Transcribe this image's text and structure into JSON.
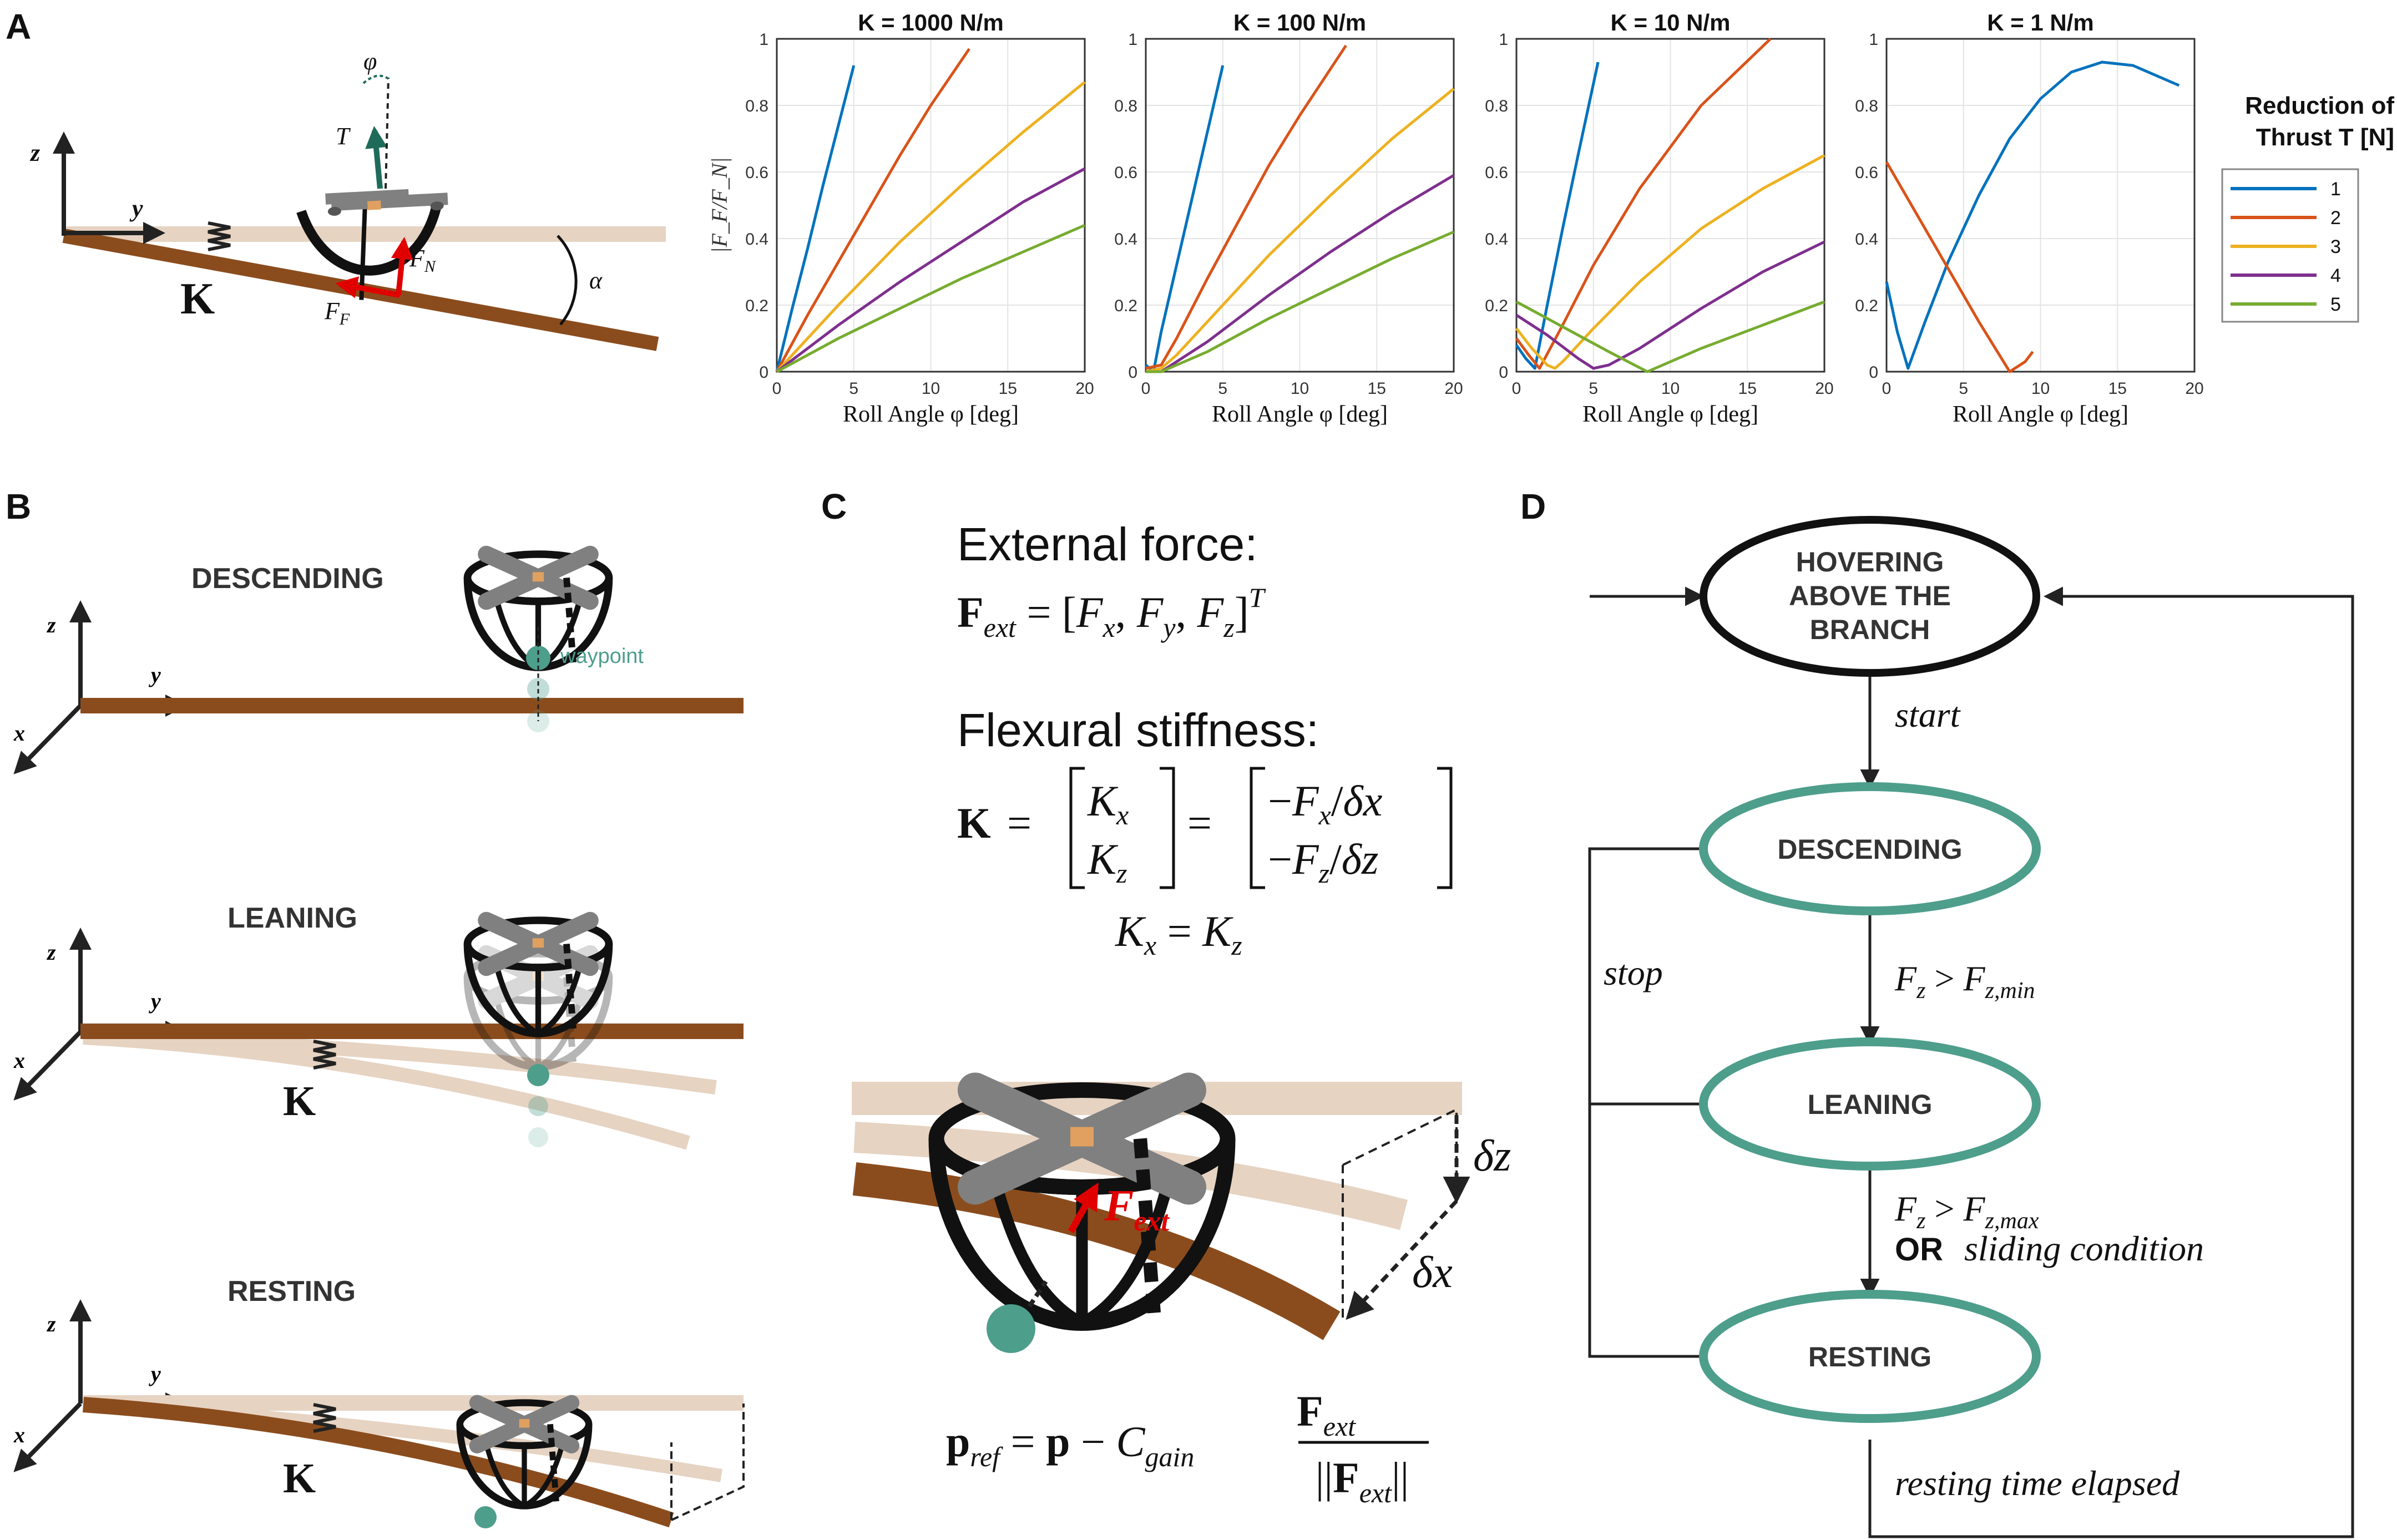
{
  "panels": {
    "a": {
      "letter": "A",
      "labels": {
        "z": "z",
        "y": "y",
        "K": "K",
        "T": "T",
        "phi": "φ",
        "FN": "F",
        "FN_sub": "N",
        "FF": "F",
        "FF_sub": "F",
        "alpha": "α"
      }
    },
    "b": {
      "letter": "B",
      "states": [
        "DESCENDING",
        "LEANING",
        "RESTING"
      ],
      "waypoint": "waypoint",
      "axes": {
        "z": "z",
        "y": "y",
        "x": "x"
      },
      "K": "K"
    },
    "c": {
      "letter": "C",
      "external_force_title": "External force:",
      "external_force_eq": "F_ext = [F_x, F_y, F_z]^T",
      "stiffness_title": "Flexural stiffness:",
      "stiffness_eq": "K = [K_x ; K_z] = [−F_x/δx ; −F_z/δz]",
      "kxkz": "K_x = K_z",
      "fext_label": "F_ext",
      "dz": "δz",
      "dx": "δx",
      "pref_eq": "p_ref = p − C_gain F_ext / ||F_ext||"
    },
    "d": {
      "letter": "D",
      "states": {
        "hover": [
          "HOVERING",
          "ABOVE THE",
          "BRANCH"
        ],
        "descending": "DESCENDING",
        "leaning": "LEANING",
        "resting": "RESTING"
      },
      "transitions": {
        "start": "start",
        "stop": "stop",
        "fz_min": "F_z > F_z,min",
        "fz_max": "F_z > F_z,max",
        "or": "OR",
        "sliding": "sliding condition",
        "resting_elapsed": "resting time elapsed"
      }
    }
  },
  "legend": {
    "title_line1": "Reduction of",
    "title_line2": "Thrust T [N]",
    "entries": [
      "1",
      "2",
      "3",
      "4",
      "5"
    ]
  },
  "colors": {
    "series": [
      "#0072BD",
      "#D95319",
      "#EDB120",
      "#7E2F8E",
      "#77AC30"
    ],
    "branch": "#8B4C1D",
    "branch_ghost": "#E6D3C2",
    "teal": "#4E9E8C",
    "drone_grey": "#808080"
  },
  "chart_data": [
    {
      "type": "line",
      "title": "K = 1000 N/m",
      "xlabel": "Roll Angle φ [deg]",
      "ylabel": "|F_F/F_N|",
      "xlim": [
        0,
        20
      ],
      "ylim": [
        0,
        1
      ],
      "xticks": [
        "0",
        "5",
        "10",
        "15",
        "20"
      ],
      "yticks": [
        "0",
        "0.2",
        "0.4",
        "0.6",
        "0.8",
        "1"
      ],
      "grid": true,
      "series": [
        {
          "name": "1",
          "x": [
            0,
            1,
            2,
            3,
            4,
            5
          ],
          "y": [
            0,
            0.19,
            0.37,
            0.56,
            0.74,
            0.92
          ]
        },
        {
          "name": "2",
          "x": [
            0,
            2,
            4,
            6,
            8,
            10,
            12.5
          ],
          "y": [
            0,
            0.17,
            0.33,
            0.49,
            0.65,
            0.8,
            0.97
          ]
        },
        {
          "name": "3",
          "x": [
            0,
            4,
            8,
            12,
            16,
            20
          ],
          "y": [
            0,
            0.2,
            0.39,
            0.56,
            0.72,
            0.87
          ]
        },
        {
          "name": "4",
          "x": [
            0,
            4,
            8,
            12,
            16,
            20
          ],
          "y": [
            0,
            0.14,
            0.27,
            0.39,
            0.51,
            0.61
          ]
        },
        {
          "name": "5",
          "x": [
            0,
            4,
            8,
            12,
            16,
            20
          ],
          "y": [
            0,
            0.1,
            0.19,
            0.28,
            0.36,
            0.44
          ]
        }
      ]
    },
    {
      "type": "line",
      "title": "K = 100 N/m",
      "xlabel": "Roll Angle φ [deg]",
      "ylabel": "",
      "xlim": [
        0,
        20
      ],
      "ylim": [
        0,
        1
      ],
      "xticks": [
        "0",
        "5",
        "10",
        "15",
        "20"
      ],
      "yticks": [
        "0",
        "0.2",
        "0.4",
        "0.6",
        "0.8",
        "1"
      ],
      "grid": true,
      "series": [
        {
          "name": "1",
          "x": [
            0,
            0.5,
            1,
            2,
            3,
            4,
            5
          ],
          "y": [
            0.02,
            0,
            0.12,
            0.32,
            0.52,
            0.72,
            0.92
          ]
        },
        {
          "name": "2",
          "x": [
            0,
            1,
            2,
            4,
            6,
            8,
            10,
            13
          ],
          "y": [
            0.01,
            0.02,
            0.1,
            0.28,
            0.45,
            0.62,
            0.77,
            0.98
          ]
        },
        {
          "name": "3",
          "x": [
            0,
            1,
            2,
            4,
            8,
            12,
            16,
            20
          ],
          "y": [
            0,
            0.01,
            0.05,
            0.15,
            0.35,
            0.53,
            0.7,
            0.85
          ]
        },
        {
          "name": "4",
          "x": [
            0,
            1,
            2,
            4,
            8,
            12,
            16,
            20
          ],
          "y": [
            0,
            0,
            0.03,
            0.09,
            0.23,
            0.36,
            0.48,
            0.59
          ]
        },
        {
          "name": "5",
          "x": [
            0,
            1,
            2,
            4,
            8,
            12,
            16,
            20
          ],
          "y": [
            0,
            0,
            0.02,
            0.06,
            0.16,
            0.25,
            0.34,
            0.42
          ]
        }
      ]
    },
    {
      "type": "line",
      "title": "K = 10 N/m",
      "xlabel": "Roll Angle φ [deg]",
      "ylabel": "",
      "xlim": [
        0,
        20
      ],
      "ylim": [
        0,
        1
      ],
      "xticks": [
        "0",
        "5",
        "10",
        "15",
        "20"
      ],
      "yticks": [
        "0",
        "0.2",
        "0.4",
        "0.6",
        "0.8",
        "1"
      ],
      "grid": true,
      "series": [
        {
          "name": "1",
          "x": [
            0,
            0.6,
            1.2,
            2,
            3,
            4,
            5.3
          ],
          "y": [
            0.08,
            0.04,
            0.01,
            0.2,
            0.43,
            0.65,
            0.93
          ]
        },
        {
          "name": "2",
          "x": [
            0,
            0.8,
            1.5,
            3,
            5,
            8,
            12,
            16.5
          ],
          "y": [
            0.1,
            0.05,
            0.01,
            0.14,
            0.32,
            0.55,
            0.8,
            1
          ]
        },
        {
          "name": "3",
          "x": [
            0,
            1,
            2,
            2.5,
            3,
            5,
            8,
            12,
            16,
            20
          ],
          "y": [
            0.13,
            0.07,
            0.02,
            0.01,
            0.03,
            0.13,
            0.27,
            0.43,
            0.55,
            0.65
          ]
        },
        {
          "name": "4",
          "x": [
            0,
            2,
            4,
            5,
            6,
            8,
            12,
            16,
            20
          ],
          "y": [
            0.17,
            0.11,
            0.04,
            0.01,
            0.02,
            0.07,
            0.19,
            0.3,
            0.39
          ]
        },
        {
          "name": "5",
          "x": [
            0,
            2,
            4,
            6,
            8.5,
            10,
            12,
            16,
            20
          ],
          "y": [
            0.21,
            0.16,
            0.11,
            0.06,
            0,
            0.03,
            0.07,
            0.14,
            0.21
          ]
        }
      ]
    },
    {
      "type": "line",
      "title": "K = 1 N/m",
      "xlabel": "Roll Angle φ [deg]",
      "ylabel": "",
      "xlim": [
        0,
        20
      ],
      "ylim": [
        0,
        1
      ],
      "xticks": [
        "0",
        "5",
        "10",
        "15",
        "20"
      ],
      "yticks": [
        "0",
        "0.2",
        "0.4",
        "0.6",
        "0.8",
        "1"
      ],
      "grid": true,
      "series": [
        {
          "name": "1",
          "x": [
            0,
            0.7,
            1.4,
            2.5,
            4,
            6,
            8,
            10,
            12,
            14,
            16,
            18,
            19
          ],
          "y": [
            0.27,
            0.12,
            0.01,
            0.15,
            0.33,
            0.53,
            0.7,
            0.82,
            0.9,
            0.93,
            0.92,
            0.88,
            0.86
          ]
        },
        {
          "name": "2",
          "x": [
            0,
            2,
            4,
            6,
            8,
            9,
            9.5
          ],
          "y": [
            0.63,
            0.47,
            0.31,
            0.15,
            0,
            0.03,
            0.06
          ]
        }
      ]
    }
  ]
}
